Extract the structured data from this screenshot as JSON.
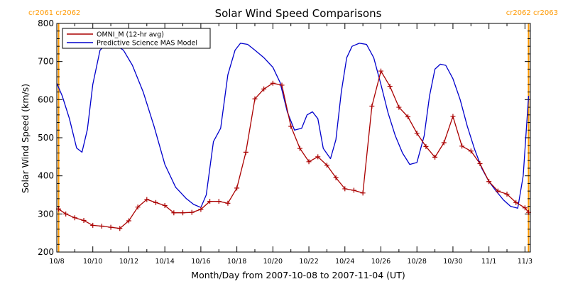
{
  "chart_data": {
    "type": "line",
    "title": "Solar Wind Speed Comparisons",
    "xlabel": "Month/Day from 2007-10-08 to 2007-11-04 (UT)",
    "ylabel": "Solar Wind Speed (km/s)",
    "xlim": [
      0,
      26.3
    ],
    "ylim": [
      200,
      800
    ],
    "x_unit": "days from 2007-10-08",
    "x_ticks": [
      {
        "x": 0,
        "label": "10/8"
      },
      {
        "x": 2,
        "label": "10/10"
      },
      {
        "x": 4,
        "label": "10/12"
      },
      {
        "x": 6,
        "label": "10/14"
      },
      {
        "x": 8,
        "label": "10/16"
      },
      {
        "x": 10,
        "label": "10/18"
      },
      {
        "x": 12,
        "label": "10/20"
      },
      {
        "x": 14,
        "label": "10/22"
      },
      {
        "x": 16,
        "label": "10/24"
      },
      {
        "x": 18,
        "label": "10/26"
      },
      {
        "x": 20,
        "label": "10/28"
      },
      {
        "x": 22,
        "label": "10/30"
      },
      {
        "x": 24,
        "label": "11/1"
      },
      {
        "x": 26,
        "label": "11/3"
      }
    ],
    "y_ticks": [
      200,
      300,
      400,
      500,
      600,
      700,
      800
    ],
    "legend_position": "top-left",
    "carrington_markers": [
      {
        "x": 0.1,
        "label": "cr2061 cr2062",
        "align": "left"
      },
      {
        "x": 26.2,
        "label": "cr2062 cr2063",
        "align": "right"
      }
    ],
    "series": [
      {
        "name": "OMNI_M (12-hr avg)",
        "color": "#aa0000",
        "marker": "+",
        "x": [
          0.1,
          0.5,
          1.0,
          1.5,
          2.0,
          2.5,
          3.0,
          3.5,
          4.0,
          4.5,
          5.0,
          5.5,
          6.0,
          6.5,
          7.0,
          7.5,
          8.0,
          8.5,
          9.0,
          9.5,
          10.0,
          10.5,
          11.0,
          11.5,
          12.0,
          12.5,
          13.0,
          13.5,
          14.0,
          14.5,
          15.0,
          15.5,
          16.0,
          16.5,
          17.0,
          17.5,
          18.0,
          18.5,
          19.0,
          19.5,
          20.0,
          20.5,
          21.0,
          21.5,
          22.0,
          22.5,
          23.0,
          23.5,
          24.0,
          24.5,
          25.0,
          25.5,
          26.0,
          26.2
        ],
        "y": [
          313,
          300,
          290,
          283,
          270,
          268,
          265,
          262,
          282,
          318,
          338,
          330,
          322,
          303,
          303,
          304,
          312,
          333,
          333,
          328,
          368,
          462,
          602,
          628,
          643,
          638,
          530,
          472,
          437,
          450,
          428,
          395,
          366,
          362,
          355,
          583,
          675,
          635,
          580,
          555,
          512,
          477,
          449,
          487,
          556,
          478,
          465,
          432,
          385,
          360,
          352,
          330,
          316,
          304
        ]
      },
      {
        "name": "Predictive Science MAS Model",
        "color": "#0000cc",
        "x": [
          0.0,
          0.3,
          0.7,
          1.1,
          1.4,
          1.7,
          2.0,
          2.4,
          2.8,
          3.2,
          3.7,
          4.2,
          4.8,
          5.4,
          6.0,
          6.6,
          7.2,
          7.6,
          8.0,
          8.3,
          8.7,
          9.1,
          9.5,
          9.9,
          10.2,
          10.6,
          11.0,
          11.5,
          12.0,
          12.4,
          12.8,
          13.2,
          13.6,
          13.9,
          14.2,
          14.5,
          14.8,
          15.2,
          15.5,
          15.8,
          16.1,
          16.4,
          16.8,
          17.2,
          17.6,
          18.0,
          18.4,
          18.8,
          19.2,
          19.6,
          20.0,
          20.4,
          20.7,
          21.0,
          21.3,
          21.6,
          22.0,
          22.4,
          22.8,
          23.2,
          23.6,
          24.0,
          24.4,
          24.8,
          25.2,
          25.6,
          25.9,
          26.2
        ],
        "y": [
          643,
          610,
          550,
          473,
          462,
          522,
          640,
          730,
          748,
          745,
          730,
          690,
          620,
          530,
          430,
          370,
          340,
          325,
          317,
          350,
          490,
          525,
          665,
          730,
          748,
          745,
          730,
          710,
          685,
          645,
          568,
          520,
          525,
          560,
          568,
          550,
          472,
          445,
          495,
          620,
          710,
          740,
          748,
          745,
          710,
          640,
          565,
          505,
          460,
          430,
          435,
          505,
          610,
          680,
          693,
          690,
          655,
          600,
          530,
          470,
          420,
          385,
          360,
          337,
          320,
          315,
          400,
          610
        ]
      }
    ]
  }
}
